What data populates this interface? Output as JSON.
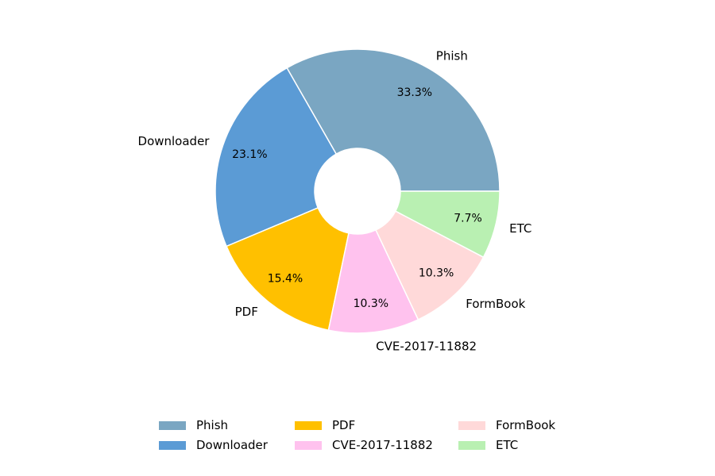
{
  "chart_data": {
    "type": "pie",
    "donut": true,
    "title": "",
    "legend_position": "bottom",
    "slices": [
      {
        "label": "Phish",
        "value": 33.3,
        "pct_label": "33.3%",
        "color": "#7aa6c2"
      },
      {
        "label": "Downloader",
        "value": 23.1,
        "pct_label": "23.1%",
        "color": "#5b9bd5"
      },
      {
        "label": "PDF",
        "value": 15.4,
        "pct_label": "15.4%",
        "color": "#ffc000"
      },
      {
        "label": "CVE-2017-11882",
        "value": 10.3,
        "pct_label": "10.3%",
        "color": "#ffc2ee"
      },
      {
        "label": "FormBook",
        "value": 10.3,
        "pct_label": "10.3%",
        "color": "#ffd9d9"
      },
      {
        "label": "ETC",
        "value": 7.7,
        "pct_label": "7.7%",
        "color": "#b9f0b2"
      }
    ]
  }
}
